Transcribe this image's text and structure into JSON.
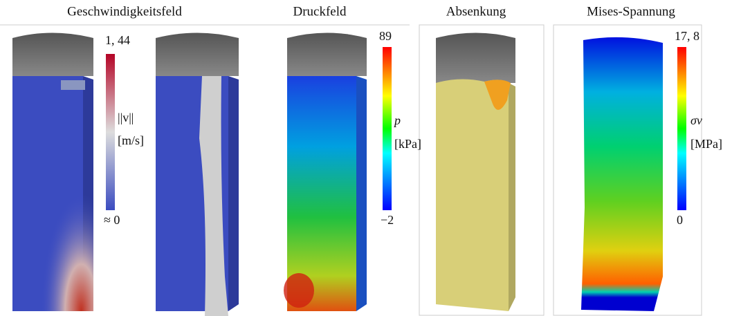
{
  "panels": [
    {
      "title": "Geschwindigkeitsfeld",
      "colorbar": {
        "max": "1, 44",
        "symbol": "||v||",
        "unit": "[m/s]",
        "min": "≈ 0"
      }
    },
    {
      "title": "Druckfeld",
      "colorbar": {
        "max": "89",
        "symbol": "p",
        "unit": "[kPa]",
        "min": "−2"
      }
    },
    {
      "title": "Absenkung"
    },
    {
      "title": "Mises-Spannung",
      "colorbar": {
        "max": "17, 8",
        "symbol": "σv",
        "unit": "[MPa]",
        "min": "0"
      }
    }
  ]
}
